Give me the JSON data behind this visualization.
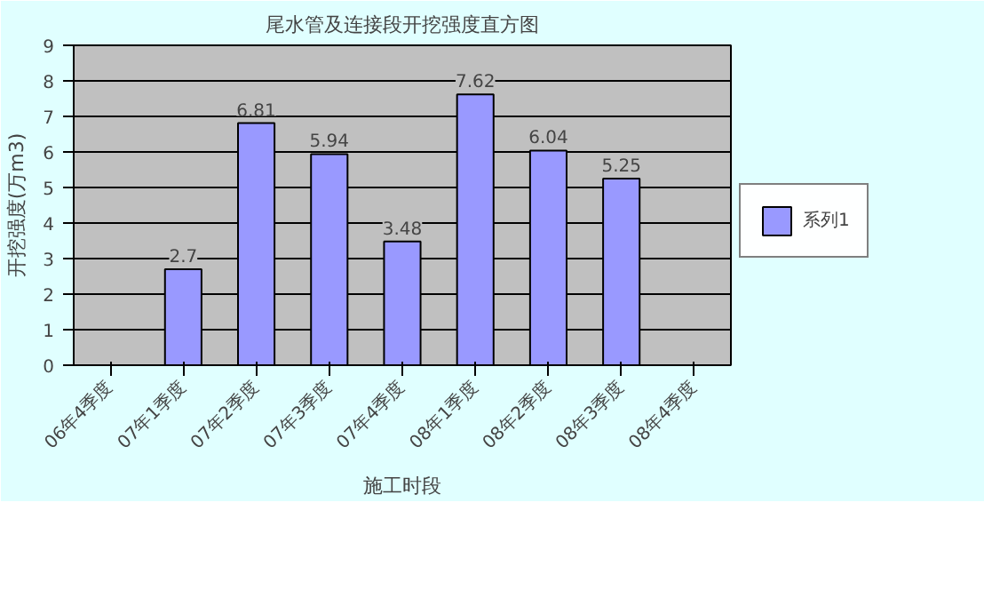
{
  "chart_data": {
    "type": "bar",
    "title": "尾水管及连接段开挖强度直方图",
    "xlabel": "施工时段",
    "ylabel": "开挖强度(万m3)",
    "categories": [
      "06年4季度",
      "07年1季度",
      "07年2季度",
      "07年3季度",
      "07年4季度",
      "08年1季度",
      "08年2季度",
      "08年3季度",
      "08年4季度"
    ],
    "series": [
      {
        "name": "系列1",
        "color": "#9999ff",
        "values": [
          null,
          2.7,
          6.81,
          5.94,
          3.48,
          7.62,
          6.04,
          5.25,
          null
        ]
      }
    ],
    "ylim": [
      0,
      9
    ],
    "yticks": [
      0,
      1,
      2,
      3,
      4,
      5,
      6,
      7,
      8,
      9
    ],
    "grid": "y",
    "legend": "right",
    "data_labels": true
  }
}
